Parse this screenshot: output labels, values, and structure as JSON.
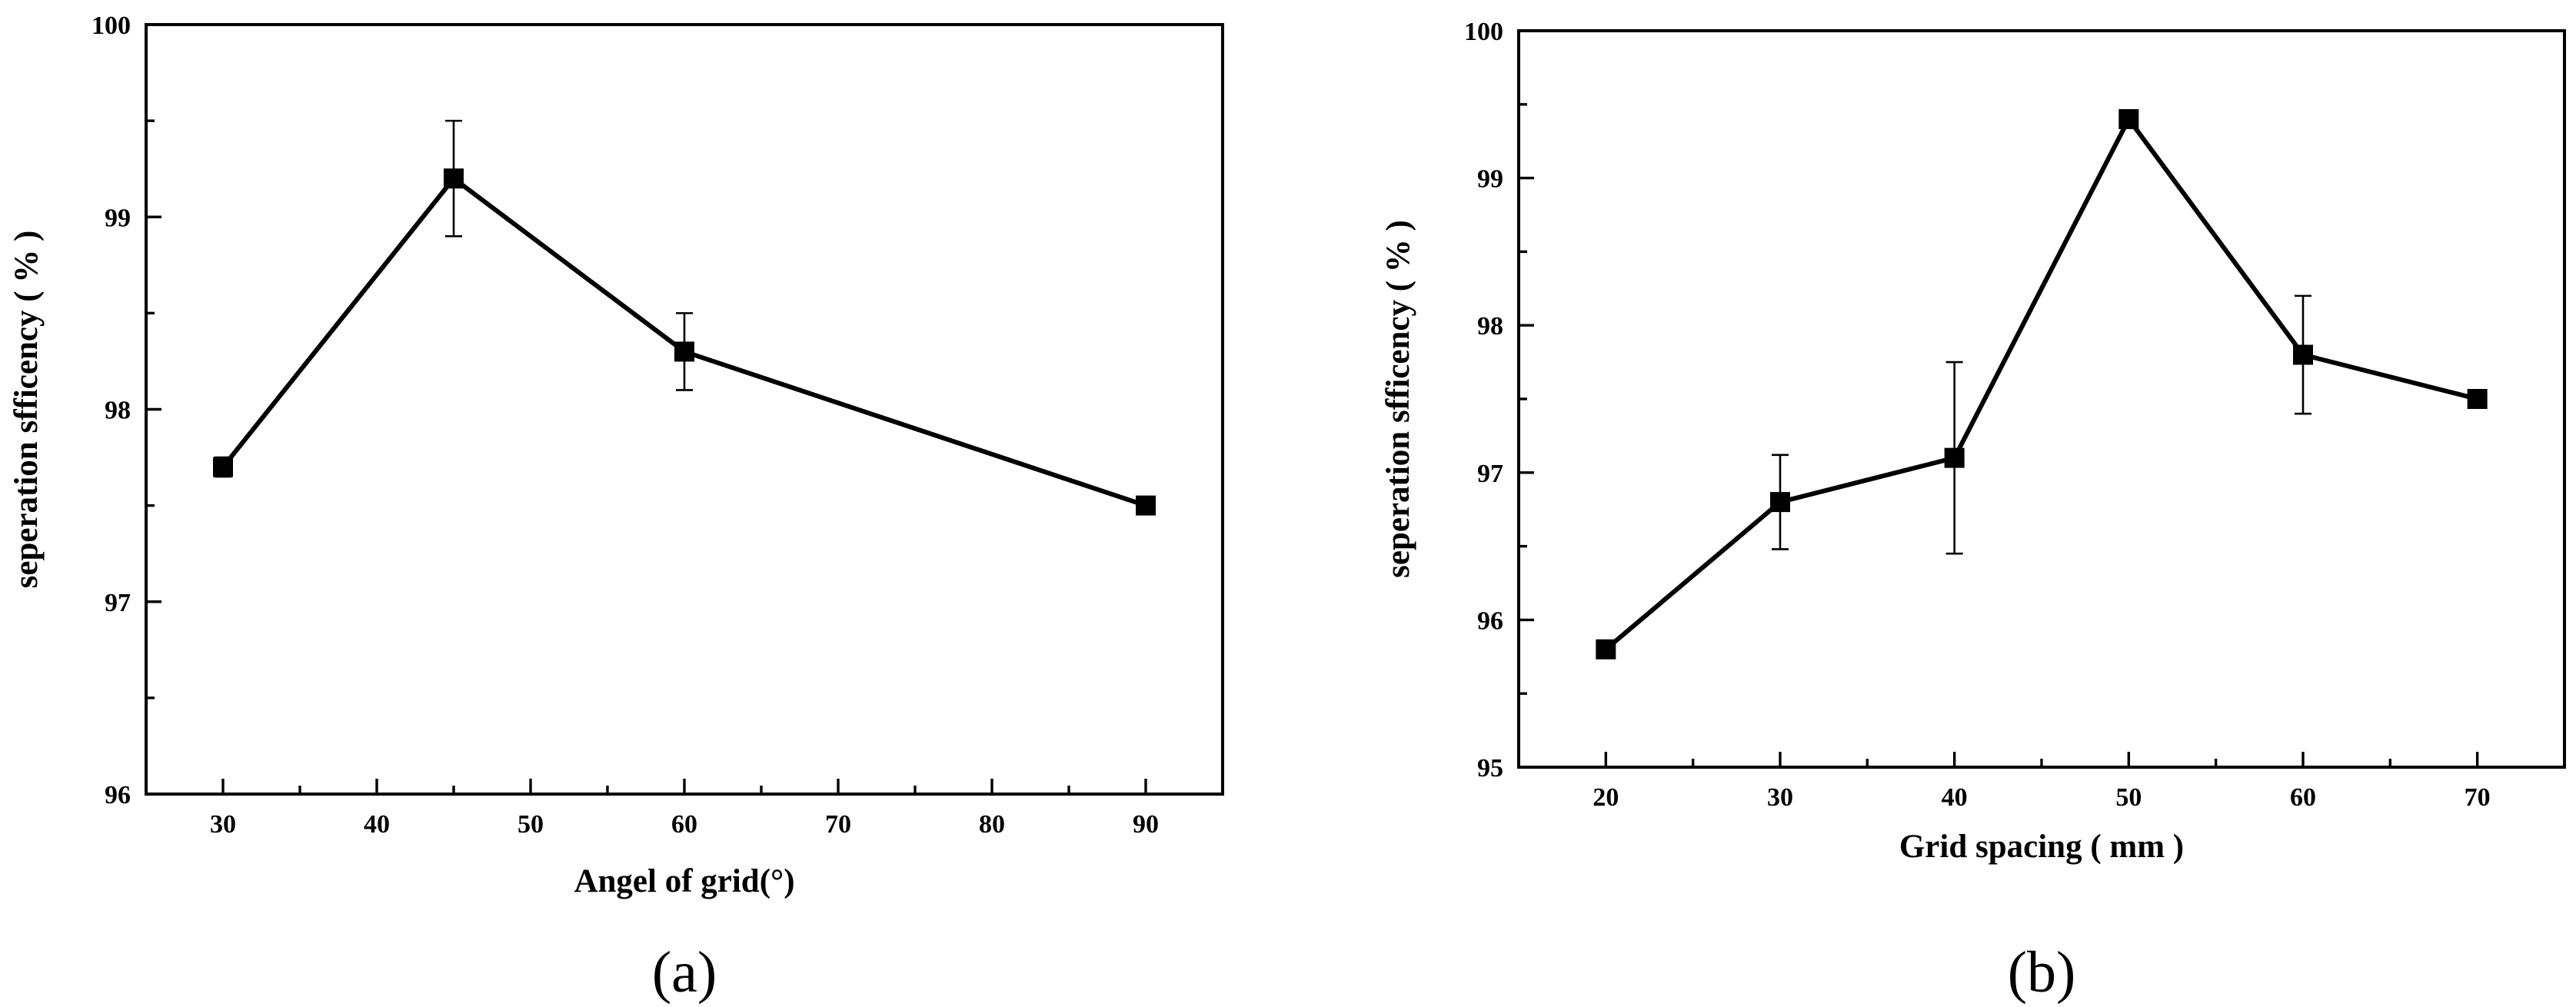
{
  "chart_data": [
    {
      "type": "line",
      "panel_label": "(a)",
      "title": "",
      "xlabel": "Angel of grid(°)",
      "ylabel": "seperation sfficency ( % )",
      "xlim": [
        25,
        95
      ],
      "ylim": [
        96,
        100
      ],
      "xticks": [
        30,
        40,
        50,
        60,
        70,
        80,
        90
      ],
      "yticks": [
        96,
        97,
        98,
        99,
        100
      ],
      "x": [
        30,
        45,
        60,
        90
      ],
      "y": [
        97.7,
        99.2,
        98.3,
        97.5
      ],
      "err_low": [
        0.05,
        0.3,
        0.2,
        0.0
      ],
      "err_high": [
        0.05,
        0.3,
        0.2,
        0.0
      ],
      "marker": "square",
      "grid": false
    },
    {
      "type": "line",
      "panel_label": "(b)",
      "title": "",
      "xlabel": "Grid spacing ( mm )",
      "ylabel": "seperation sfficency ( % )",
      "xlim": [
        15,
        75
      ],
      "ylim": [
        95,
        100
      ],
      "xticks": [
        20,
        30,
        40,
        50,
        60,
        70
      ],
      "yticks": [
        95,
        96,
        97,
        98,
        99,
        100
      ],
      "x": [
        20,
        30,
        40,
        50,
        60,
        70
      ],
      "y": [
        95.8,
        96.8,
        97.1,
        99.4,
        97.8,
        97.5
      ],
      "err_low": [
        0.0,
        0.32,
        0.65,
        0.05,
        0.4,
        0.0
      ],
      "err_high": [
        0.0,
        0.32,
        0.65,
        0.05,
        0.4,
        0.0
      ],
      "marker": "square",
      "grid": false
    }
  ]
}
